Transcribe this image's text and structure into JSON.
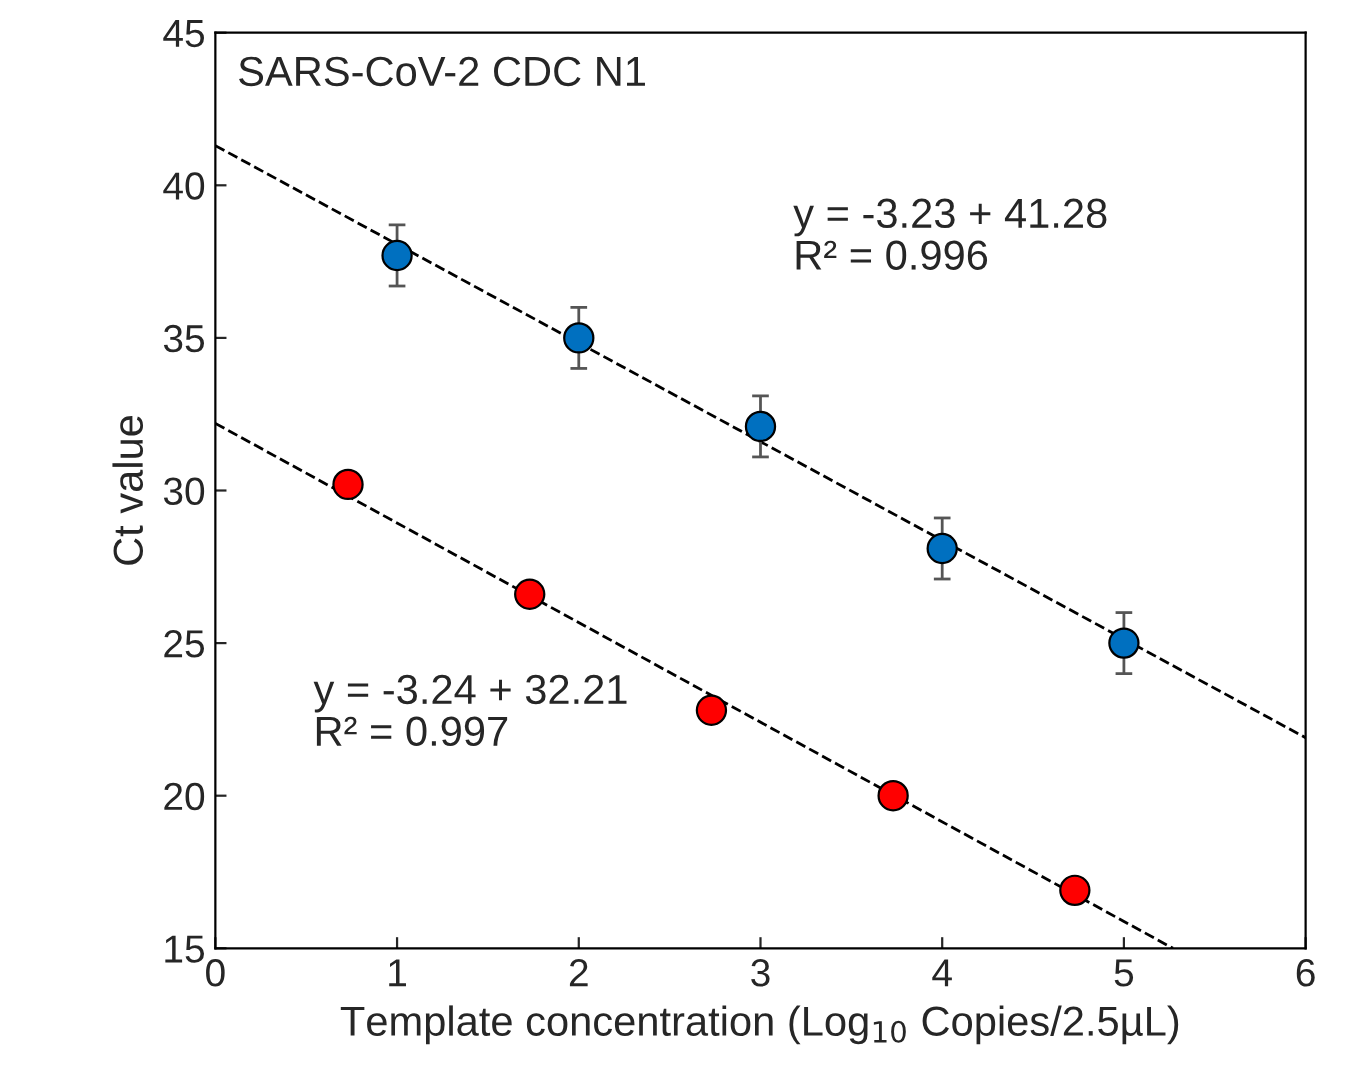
{
  "chart_data": {
    "type": "scatter",
    "title": "SARS-CoV-2 CDC N1",
    "xlabel": "Template concentration (Log$_{10}$ Copies/2.5µL)",
    "ylabel": "Ct value",
    "xlim": [
      0,
      6
    ],
    "xticks": [
      0,
      1,
      2,
      3,
      4,
      5,
      6
    ],
    "ylim": [
      15,
      45
    ],
    "yticks": [
      15,
      20,
      25,
      30,
      35,
      40,
      45
    ],
    "grid": false,
    "legend": false,
    "marker": "circle",
    "series": [
      {
        "color": "#0070c0",
        "x": [
          1,
          2,
          3,
          4,
          5
        ],
        "values": [
          37.7,
          35.0,
          32.1,
          28.1,
          25.0
        ],
        "errors": [
          1.0,
          1.0,
          1.0,
          1.0,
          1.0
        ]
      },
      {
        "color": "#ff0000",
        "x": [
          0.73,
          1.73,
          2.73,
          3.73,
          4.73
        ],
        "values": [
          30.2,
          26.6,
          22.8,
          20.0,
          16.9
        ]
      },
      {
        "type": "line",
        "color": "#000000",
        "line_style": "dashed",
        "marker": "none",
        "x": [
          0,
          6
        ],
        "values": [
          41.3,
          21.9
        ]
      },
      {
        "type": "line",
        "color": "#000000",
        "line_style": "dashed",
        "marker": "none",
        "x": [
          0,
          5.27
        ],
        "values": [
          32.2,
          15.0
        ]
      }
    ],
    "annotations": [
      "y = -3.23 + 41.28\nR² = 0.996",
      "y = -3.24 + 32.21\nR² = 0.997"
    ]
  }
}
